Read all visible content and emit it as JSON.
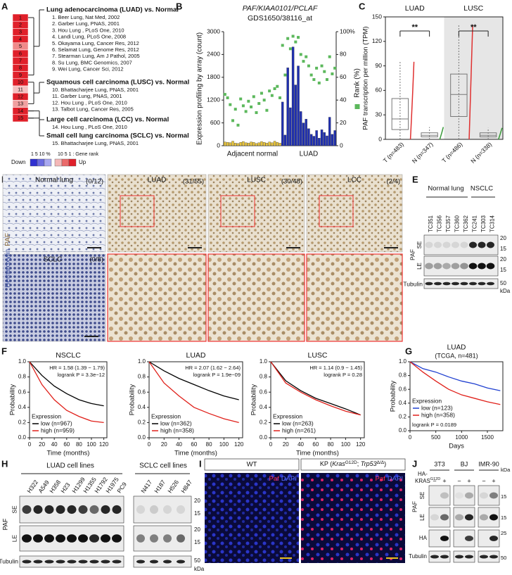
{
  "panel_labels": [
    "A",
    "B",
    "C",
    "D",
    "E",
    "F",
    "G",
    "H",
    "I",
    "J"
  ],
  "panel_a": {
    "rows": [
      "1",
      "2",
      "3",
      "4",
      "5",
      "6",
      "7",
      "8",
      "9",
      "10",
      "11",
      "12",
      "13",
      "14",
      "15"
    ],
    "row_colors": [
      "#e0202a",
      "#e0202a",
      "#e0202a",
      "#e0202a",
      "#f08a8a",
      "#e0202a",
      "#e0202a",
      "#e0202a",
      "#e0202a",
      "#e0202a",
      "#f6c0c0",
      "#e0202a",
      "#f0a0a0",
      "#e0202a",
      "#e0202a"
    ],
    "groups": [
      {
        "title": "Lung adenocarcinoma (LUAD) vs. Normal",
        "studies": [
          "1. Beer Lung, Nat Med, 2002",
          "2. Garber Lung, PNAS, 2001",
          "3. Hou Lung , PLoS One, 2010",
          "4. Landi Lung, PLoS One, 2008",
          "5. Okayama Lung, Cancer Res, 2012",
          "6. Selamat Lung, Genome Res, 2012",
          "7. Stearman Lung, Am J Pathol, 2005",
          "8. Su Lung, BMC Genomics, 2007",
          "9. Wei Lung, Cancer Sci, 2012"
        ]
      },
      {
        "title": "Squamous cell carcinoma (LUSC) vs. Normal",
        "studies": [
          "10. Bhattacharjee Lung, PNAS, 2001",
          "11. Garber Lung, PNAS, 2001",
          "12. Hou Lung , PLoS One, 2010",
          "13. Talbot Lung, Cancer Res, 2005"
        ]
      },
      {
        "title": "Large cell carcinoma (LCC) vs. Normal",
        "studies": [
          "14. Hou Lung , PLoS One, 2010"
        ]
      },
      {
        "title": "Small cell lung carcinoma (SCLC) vs. Normal",
        "studies": [
          "15. Bhattacharjee Lung, PNAS, 2001"
        ]
      }
    ],
    "legend": {
      "scale_left": "1 5 10 %",
      "scale_right": "10 5 1 : Gene rank",
      "down": "Down",
      "up": "Up"
    }
  },
  "chart_data": [
    {
      "type": "bar",
      "title": "PAF/KIAA0101/PCLAF",
      "subtitle": "GDS1650/38116_at",
      "y_label": "Expression profiling by array  (count)",
      "categories": [
        null,
        null,
        null,
        null,
        null,
        null,
        null,
        null,
        null,
        null,
        null,
        null,
        null,
        null,
        null,
        null,
        null,
        null,
        null,
        null,
        null,
        null,
        null,
        null,
        null,
        null,
        null,
        null,
        null,
        null,
        null,
        null,
        null,
        null,
        null,
        null,
        null,
        null,
        null,
        null,
        null,
        null,
        null
      ],
      "group_labels": [
        "Adjacent normal",
        "LUAD"
      ],
      "series": [
        {
          "color": "#e8c43a",
          "values": [
            100,
            90,
            80,
            120,
            70,
            60,
            90,
            110,
            80,
            70,
            100,
            90,
            60,
            80,
            110,
            90,
            70,
            100,
            80,
            120,
            90,
            70,
            null,
            null,
            null,
            null,
            null,
            null,
            null,
            null,
            null,
            null,
            null,
            null,
            null,
            null,
            null,
            null,
            null,
            null,
            null,
            null,
            null
          ]
        },
        {
          "color": "#1f2fb0",
          "values": [
            null,
            null,
            null,
            null,
            null,
            null,
            null,
            null,
            null,
            null,
            null,
            null,
            null,
            null,
            null,
            null,
            null,
            null,
            null,
            null,
            null,
            null,
            1150,
            280,
            2050,
            1000,
            2600,
            1600,
            2100,
            900,
            600,
            700,
            450,
            300,
            250,
            400,
            200,
            420,
            350,
            260,
            750,
            300,
            400
          ]
        },
        {
          "name": "Rank (%)",
          "color": "#5cb85c",
          "axis": "y2",
          "values": [
            45,
            42,
            36,
            22,
            32,
            18,
            41,
            35,
            30,
            39,
            34,
            43,
            29,
            37,
            46,
            40,
            31,
            48,
            44,
            50,
            52,
            42,
            88,
            62,
            94,
            85,
            96,
            91,
            95,
            80,
            74,
            78,
            70,
            62,
            58,
            68,
            55,
            70,
            65,
            58,
            78,
            63,
            68
          ]
        }
      ],
      "ylim": [
        0,
        3000
      ],
      "yticks": [
        0,
        600,
        1200,
        1800,
        2400,
        3000
      ],
      "y2lim": [
        0,
        100
      ],
      "y2ticks": [
        {
          "value": 100,
          "label": "100%"
        },
        80,
        60,
        40,
        20,
        0
      ]
    },
    {
      "type": "box",
      "y_label": "PAF transcription per million (TPM)",
      "groups": [
        "LUAD",
        "LUSC"
      ],
      "annotations": [
        "**",
        "**"
      ],
      "categories": [
        "T (n=483)",
        "N (n=347)",
        "T (n=486)",
        "N (n=338)"
      ],
      "boxes": [
        {
          "low": 0,
          "q1": 12,
          "median": 25,
          "q3": 50,
          "high": 95
        },
        {
          "low": 0,
          "q1": 3,
          "median": 5,
          "q3": 8,
          "high": 15
        },
        {
          "low": 0,
          "q1": 28,
          "median": 55,
          "q3": 80,
          "high": 140
        },
        {
          "low": 0,
          "q1": 3,
          "median": 5,
          "q3": 8,
          "high": 14
        }
      ],
      "colors": [
        "#e03030",
        "#3a9a3a",
        "#e03030",
        "#3a9a3a"
      ],
      "ylim": [
        0,
        150
      ],
      "yticks": [
        0,
        30,
        60,
        90,
        120,
        150
      ]
    },
    {
      "type": "line",
      "title": "NSCLC",
      "annotations": [
        "HR = 1.58 (1.39 − 1.79)",
        "logrank P = 3.3e−12"
      ],
      "x_label": "Time (months)",
      "y_label": "Probability",
      "legend_title": "Expression",
      "x": [
        0,
        20,
        40,
        60,
        80,
        100,
        120
      ],
      "series": [
        {
          "name": "low (n=967)",
          "color": "#000000",
          "values": [
            1,
            0.82,
            0.68,
            0.58,
            0.5,
            0.45,
            0.42
          ]
        },
        {
          "name": "high (n=959)",
          "color": "#e0201a",
          "values": [
            1,
            0.7,
            0.5,
            0.36,
            0.28,
            0.22,
            0.2
          ]
        }
      ],
      "xlim": [
        0,
        125
      ],
      "xticks": [
        0,
        20,
        40,
        60,
        80,
        100,
        120
      ],
      "ylim": [
        0,
        1
      ],
      "yticks": [
        {
          "value": 0,
          "label": "0.0"
        },
        {
          "value": 0.2,
          "label": "0.2"
        },
        {
          "value": 0.4,
          "label": "0.4"
        },
        {
          "value": 0.6,
          "label": "0.6"
        },
        {
          "value": 0.8,
          "label": "0.8"
        },
        {
          "value": 1,
          "label": "1.0"
        }
      ]
    },
    {
      "type": "line",
      "title": "LUAD",
      "annotations": [
        "HR = 2.07 (1.62 − 2.64)",
        "logrank P = 1.9e−09"
      ],
      "x_label": "Time (months)",
      "y_label": "Probability",
      "legend_title": "Expression",
      "x": [
        0,
        20,
        40,
        60,
        80,
        100,
        120
      ],
      "series": [
        {
          "name": "low (n=362)",
          "color": "#000000",
          "values": [
            1,
            0.88,
            0.78,
            0.7,
            0.62,
            0.55,
            0.5
          ]
        },
        {
          "name": "high (n=358)",
          "color": "#e0201a",
          "values": [
            1,
            0.72,
            0.55,
            0.4,
            0.32,
            0.25,
            0.2
          ]
        }
      ],
      "xlim": [
        0,
        125
      ],
      "xticks": [
        0,
        20,
        40,
        60,
        80,
        100,
        120
      ],
      "ylim": [
        0,
        1
      ],
      "yticks": [
        {
          "value": 0,
          "label": "0.0"
        },
        {
          "value": 0.2,
          "label": "0.2"
        },
        {
          "value": 0.4,
          "label": "0.4"
        },
        {
          "value": 0.6,
          "label": "0.6"
        },
        {
          "value": 0.8,
          "label": "0.8"
        },
        {
          "value": 1,
          "label": "1.0"
        }
      ]
    },
    {
      "type": "line",
      "title": "LUSC",
      "annotations": [
        "HR = 1.14 (0.9 − 1.45)",
        "logrank P = 0.28"
      ],
      "x_label": "Time (months)",
      "y_label": "Probability",
      "legend_title": "Expression",
      "x": [
        0,
        20,
        40,
        60,
        80,
        100,
        120
      ],
      "series": [
        {
          "name": "low (n=263)",
          "color": "#000000",
          "values": [
            1,
            0.75,
            0.62,
            0.52,
            0.45,
            0.38,
            0.3
          ]
        },
        {
          "name": "high (n=261)",
          "color": "#e0201a",
          "values": [
            1,
            0.72,
            0.6,
            0.5,
            0.42,
            0.35,
            0.3
          ]
        }
      ],
      "xlim": [
        0,
        125
      ],
      "xticks": [
        0,
        20,
        40,
        60,
        80,
        100,
        120
      ],
      "ylim": [
        0,
        1
      ],
      "yticks": [
        {
          "value": 0,
          "label": "0.0"
        },
        {
          "value": 0.2,
          "label": "0.2"
        },
        {
          "value": 0.4,
          "label": "0.4"
        },
        {
          "value": 0.6,
          "label": "0.6"
        },
        {
          "value": 0.8,
          "label": "0.8"
        },
        {
          "value": 1,
          "label": "1.0"
        }
      ]
    },
    {
      "type": "line",
      "title": "LUAD",
      "subtitle": "(TCGA, n=481)",
      "annotations": [
        "logrank P = 0.0189"
      ],
      "x_label": "Days",
      "y_label": "Probability",
      "legend_title": "Expression",
      "x": [
        0,
        250,
        500,
        750,
        1000,
        1250,
        1500,
        1750
      ],
      "series": [
        {
          "name": "low (n=123)",
          "color": "#2040d0",
          "values": [
            1,
            0.9,
            0.85,
            0.78,
            0.72,
            0.68,
            0.62,
            0.58
          ]
        },
        {
          "name": "high (n=358)",
          "color": "#e0201a",
          "values": [
            1,
            0.85,
            0.72,
            0.6,
            0.52,
            0.47,
            0.42,
            0.38
          ]
        }
      ],
      "xlim": [
        0,
        1800
      ],
      "xticks": [
        0,
        500,
        1000,
        1500
      ],
      "ylim": [
        0,
        1
      ],
      "yticks": [
        {
          "value": 0,
          "label": "0.0"
        },
        {
          "value": 0.2,
          "label": "0.2"
        },
        {
          "value": 0.4,
          "label": "0.4"
        },
        {
          "value": 0.6,
          "label": "0.6"
        },
        {
          "value": 0.8,
          "label": "0.8"
        },
        {
          "value": 1,
          "label": "1.0"
        }
      ]
    }
  ],
  "panel_d": {
    "side_label": [
      "Hematoxylin",
      "PAF"
    ],
    "images": [
      {
        "label": "Normal lung",
        "ratio": "(0/12)"
      },
      {
        "label": "LUAD",
        "ratio": "(31/55)"
      },
      {
        "label": "LUSC",
        "ratio": "(30/48)"
      },
      {
        "label": "LCC",
        "ratio": "(2/4)"
      },
      {
        "label": "SCLC",
        "ratio": "(0/8)"
      }
    ]
  },
  "panel_e": {
    "groups": [
      "Normal lung",
      "NSCLC"
    ],
    "lanes": [
      "TC351",
      "TC356",
      "TC357",
      "TC360",
      "TC362",
      "TC241",
      "TC303",
      "TC314"
    ],
    "protein": "PAF",
    "exposures": [
      "SE",
      "LE"
    ],
    "loading": "Tubulin",
    "markers": [
      "20",
      "15",
      "20",
      "15",
      "50"
    ],
    "unit": "kDa"
  },
  "panel_h": {
    "groups": [
      "LUAD cell lines",
      "SCLC cell lines"
    ],
    "lanes": [
      "H322",
      "A549",
      "H358",
      "H23",
      "H1299",
      "H1355",
      "H1792",
      "H1975",
      "PC9",
      "N417",
      "H187",
      "H526",
      "H847"
    ],
    "protein": "PAF",
    "exposures": [
      "SE",
      "LE"
    ],
    "loading": "Tubulin",
    "markers": [
      "20",
      "15",
      "20",
      "15",
      "50"
    ],
    "unit": "kDa"
  },
  "panel_i": {
    "wt": "WT",
    "kp_label": [
      "KP (",
      "Kras",
      "G12D",
      "; ",
      "Trp53",
      "Δ/Δ",
      ")"
    ],
    "stain": [
      "Paf",
      "DAPI"
    ]
  },
  "panel_j": {
    "cells": [
      "3T3",
      "BJ",
      "IMR-90"
    ],
    "treatment": [
      "HA-",
      "KRAS",
      "G12D"
    ],
    "signs": [
      "−",
      "+"
    ],
    "rows": [
      "SE",
      "LE",
      "HA",
      "Tubulin"
    ],
    "protein": "PAF",
    "markers": [
      "15",
      "15",
      "25",
      "50"
    ],
    "unit": "kDa"
  }
}
